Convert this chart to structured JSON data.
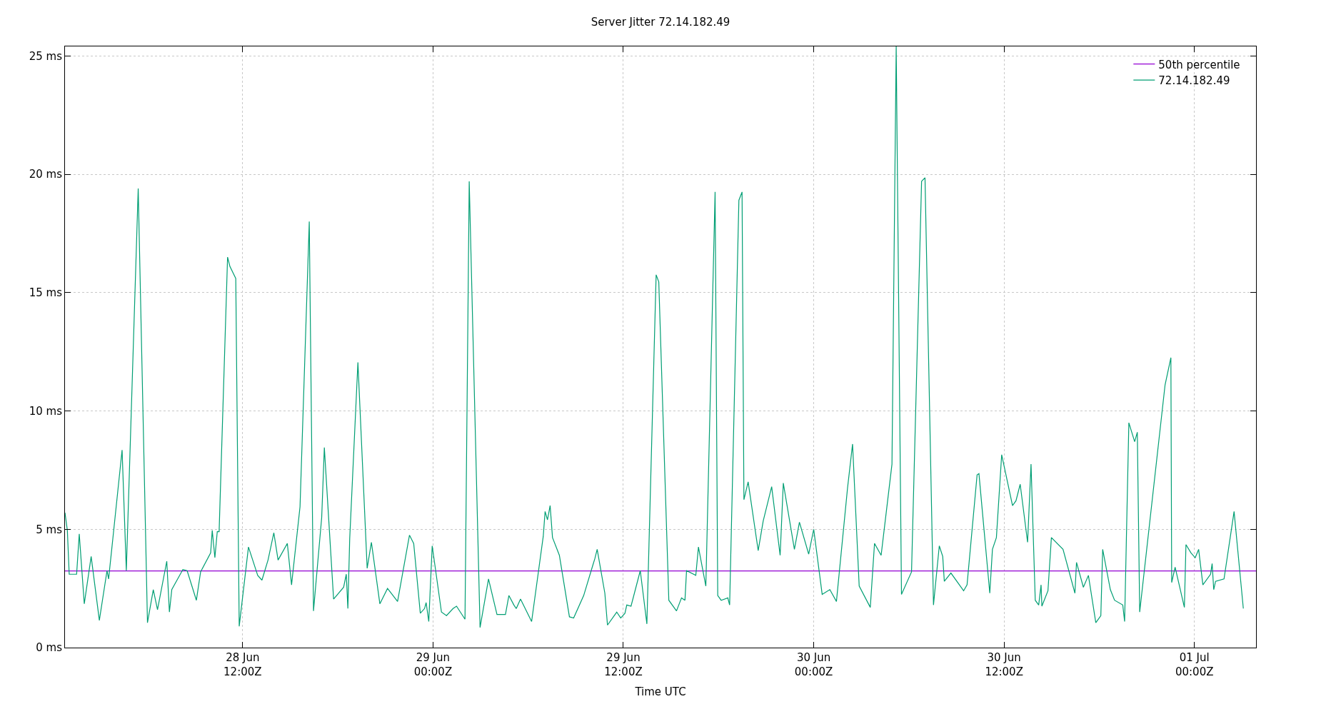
{
  "chart_data": {
    "type": "line",
    "title": "Server Jitter 72.14.182.49",
    "xlabel": "Time UTC",
    "legend": "top right",
    "grid": true,
    "xlim": [
      "--06-28T00:48",
      "--07-01T03:53"
    ],
    "xticks": [
      {
        "value": "--06-28T12:00",
        "label": "28 Jun\n12:00Z"
      },
      {
        "value": "--06-29T00:00",
        "label": "29 Jun\n00:00Z"
      },
      {
        "value": "--06-29T12:00",
        "label": "29 Jun\n12:00Z"
      },
      {
        "value": "--06-30T00:00",
        "label": "30 Jun\n00:00Z"
      },
      {
        "value": "--06-30T12:00",
        "label": "30 Jun\n12:00Z"
      },
      {
        "value": "--07-01T00:00",
        "label": "01 Jul\n00:00Z"
      }
    ],
    "ylim": [
      0,
      25.4
    ],
    "yticks": [
      {
        "value": 0,
        "label": "0 ms"
      },
      {
        "value": 5,
        "label": "5 ms"
      },
      {
        "value": 10,
        "label": "10 ms"
      },
      {
        "value": 15,
        "label": "15 ms"
      },
      {
        "value": 20,
        "label": "20 ms"
      },
      {
        "value": 25,
        "label": "25 ms"
      }
    ],
    "ref_lines": [
      {
        "axis": "y",
        "value": 3.24,
        "label": "50th percentile",
        "color": "#9400d3"
      }
    ],
    "series": [
      {
        "name": "72.14.182.49",
        "color": "#009e73",
        "x": [
          "--06-28T00:48",
          "--06-28T00:57",
          "--06-28T01:04",
          "--06-28T01:32",
          "--06-28T01:42",
          "--06-28T02:01",
          "--06-28T02:27",
          "--06-28T02:58",
          "--06-28T03:27",
          "--06-28T03:33",
          "--06-28T03:49",
          "--06-28T04:24",
          "--06-28T04:40",
          "--06-28T05:25",
          "--06-28T06:00",
          "--06-28T06:22",
          "--06-28T06:38",
          "--06-28T07:13",
          "--06-28T07:23",
          "--06-28T07:32",
          "--06-28T08:14",
          "--06-28T08:30",
          "--06-28T09:05",
          "--06-28T09:21",
          "--06-28T09:59",
          "--06-28T10:05",
          "--06-28T10:15",
          "--06-28T10:24",
          "--06-28T10:31",
          "--06-28T11:03",
          "--06-28T11:12",
          "--06-28T11:34",
          "--06-28T11:47",
          "--06-28T12:22",
          "--06-28T12:57",
          "--06-28T13:13",
          "--06-28T13:36",
          "--06-28T13:58",
          "--06-28T14:14",
          "--06-28T14:49",
          "--06-28T15:05",
          "--06-28T15:37",
          "--06-28T16:12",
          "--06-28T16:28",
          "--06-28T16:59",
          "--06-28T17:09",
          "--06-28T17:44",
          "--06-28T18:22",
          "--06-28T18:32",
          "--06-28T18:38",
          "--06-28T18:45",
          "--06-28T19:16",
          "--06-28T19:51",
          "--06-28T20:07",
          "--06-28T20:39",
          "--06-28T21:08",
          "--06-28T21:46",
          "--06-28T22:31",
          "--06-28T22:47",
          "--06-28T23:12",
          "--06-28T23:28",
          "--06-28T23:34",
          "--06-28T23:44",
          "--06-28T23:57",
          "--06-29T00:32",
          "--06-29T00:51",
          "--06-29T01:16",
          "--06-29T01:29",
          "--06-29T02:01",
          "--06-29T02:17",
          "--06-29T02:58",
          "--06-29T03:30",
          "--06-29T04:02",
          "--06-29T04:34",
          "--06-29T04:47",
          "--06-29T05:06",
          "--06-29T05:15",
          "--06-29T05:31",
          "--06-29T06:13",
          "--06-29T06:57",
          "--06-29T07:04",
          "--06-29T07:13",
          "--06-29T07:23",
          "--06-29T07:32",
          "--06-29T07:58",
          "--06-29T08:36",
          "--06-29T08:52",
          "--06-29T09:30",
          "--06-29T10:05",
          "--06-29T10:12",
          "--06-29T10:21",
          "--06-29T10:50",
          "--06-29T11:00",
          "--06-29T11:35",
          "--06-29T11:50",
          "--06-29T12:06",
          "--06-29T12:13",
          "--06-29T12:29",
          "--06-29T13:04",
          "--06-29T13:29",
          "--06-29T14:04",
          "--06-29T14:14",
          "--06-29T14:52",
          "--06-29T15:21",
          "--06-29T15:40",
          "--06-29T15:53",
          "--06-29T15:59",
          "--06-29T16:34",
          "--06-29T16:44",
          "--06-29T17:12",
          "--06-29T17:47",
          "--06-29T17:57",
          "--06-29T18:10",
          "--06-29T18:35",
          "--06-29T18:42",
          "--06-29T19:17",
          "--06-29T19:29",
          "--06-29T19:36",
          "--06-29T19:52",
          "--06-29T20:30",
          "--06-29T20:49",
          "--06-29T21:21",
          "--06-29T21:53",
          "--06-29T22:05",
          "--06-29T22:47",
          "--06-29T23:06",
          "--06-29T23:41",
          "--06-30T00:00",
          "--06-30T00:32",
          "--06-30T01:01",
          "--06-30T01:26",
          "--06-30T02:08",
          "--06-30T02:27",
          "--06-30T02:52",
          "--06-30T03:34",
          "--06-30T03:50",
          "--06-30T04:15",
          "--06-30T04:56",
          "--06-30T05:12",
          "--06-30T05:32",
          "--06-30T06:10",
          "--06-30T06:48",
          "--06-30T07:01",
          "--06-30T07:33",
          "--06-30T07:55",
          "--06-30T08:08",
          "--06-30T08:14",
          "--06-30T08:39",
          "--06-30T09:27",
          "--06-30T09:40",
          "--06-30T10:18",
          "--06-30T10:25",
          "--06-30T11:06",
          "--06-30T11:16",
          "--06-30T11:31",
          "--06-30T11:51",
          "--06-30T12:32",
          "--06-30T12:45",
          "--06-30T13:01",
          "--06-30T13:29",
          "--06-30T13:42",
          "--06-30T13:58",
          "--06-30T14:11",
          "--06-30T14:20",
          "--06-30T14:23",
          "--06-30T14:46",
          "--06-30T14:59",
          "--06-30T15:43",
          "--06-30T16:28",
          "--06-30T16:34",
          "--06-30T17:00",
          "--06-30T17:19",
          "--06-30T17:47",
          "--06-30T18:06",
          "--06-30T18:13",
          "--06-30T18:42",
          "--06-30T18:58",
          "--06-30T19:29",
          "--06-30T19:36",
          "--06-30T19:52",
          "--06-30T20:14",
          "--06-30T20:24",
          "--06-30T20:33",
          "--06-30T22:09",
          "--06-30T22:31",
          "--06-30T22:34",
          "--06-30T22:47",
          "--06-30T23:22",
          "--06-30T23:28",
          "--06-30T23:47",
          "--07-01T00:03",
          "--07-01T00:16",
          "--07-01T00:32",
          "--07-01T01:01",
          "--07-01T01:07",
          "--07-01T01:13",
          "--07-01T01:20",
          "--07-01T01:52",
          "--07-01T02:30",
          "--07-01T03:05"
        ],
        "values": [
          5.7,
          4.95,
          3.1,
          3.1,
          4.8,
          1.85,
          3.85,
          1.15,
          3.25,
          2.9,
          4.6,
          8.35,
          3.25,
          19.4,
          1.05,
          2.45,
          1.6,
          3.65,
          1.5,
          2.45,
          3.3,
          3.25,
          2.0,
          3.2,
          4.0,
          4.95,
          3.8,
          4.9,
          4.9,
          16.5,
          16.1,
          15.6,
          0.9,
          4.25,
          3.05,
          2.85,
          3.7,
          4.85,
          3.7,
          4.4,
          2.65,
          5.95,
          18.0,
          1.55,
          5.5,
          8.45,
          2.05,
          2.55,
          3.1,
          1.65,
          4.6,
          12.05,
          3.35,
          4.45,
          1.85,
          2.5,
          1.95,
          4.75,
          4.4,
          1.45,
          1.65,
          1.9,
          1.1,
          4.3,
          1.5,
          1.35,
          1.65,
          1.75,
          1.2,
          19.7,
          0.85,
          2.9,
          1.4,
          1.4,
          2.2,
          1.8,
          1.65,
          2.05,
          1.1,
          4.7,
          5.75,
          5.4,
          6.0,
          4.65,
          3.9,
          1.3,
          1.25,
          2.2,
          3.5,
          3.75,
          4.15,
          2.3,
          0.95,
          1.5,
          1.25,
          1.45,
          1.8,
          1.75,
          3.25,
          1.0,
          15.75,
          15.45,
          2.0,
          1.55,
          2.1,
          2.0,
          3.25,
          3.05,
          4.25,
          2.6,
          19.25,
          2.2,
          2.0,
          2.1,
          1.8,
          18.9,
          19.25,
          6.25,
          7.0,
          4.1,
          5.35,
          6.8,
          3.9,
          6.95,
          4.15,
          5.3,
          3.95,
          5.0,
          2.25,
          2.45,
          1.95,
          6.75,
          8.6,
          2.6,
          1.7,
          4.4,
          3.9,
          7.75,
          25.4,
          2.25,
          3.2,
          19.7,
          19.85,
          1.8,
          4.3,
          3.85,
          2.8,
          3.15,
          2.4,
          2.65,
          7.3,
          7.35,
          2.3,
          4.15,
          4.65,
          8.15,
          6.0,
          6.2,
          6.9,
          4.45,
          7.75,
          2.0,
          1.8,
          2.65,
          1.75,
          2.4,
          4.65,
          4.15,
          2.3,
          3.6,
          2.55,
          3.05,
          1.05,
          1.35,
          4.15,
          2.45,
          2.0,
          1.8,
          1.1,
          9.5,
          8.7,
          9.1,
          1.5,
          11.1,
          12.25,
          2.75,
          3.4,
          1.7,
          4.35,
          4.0,
          3.8,
          4.15,
          2.65,
          3.1,
          3.55,
          2.45,
          2.8,
          2.9,
          5.75,
          1.65
        ]
      }
    ]
  }
}
